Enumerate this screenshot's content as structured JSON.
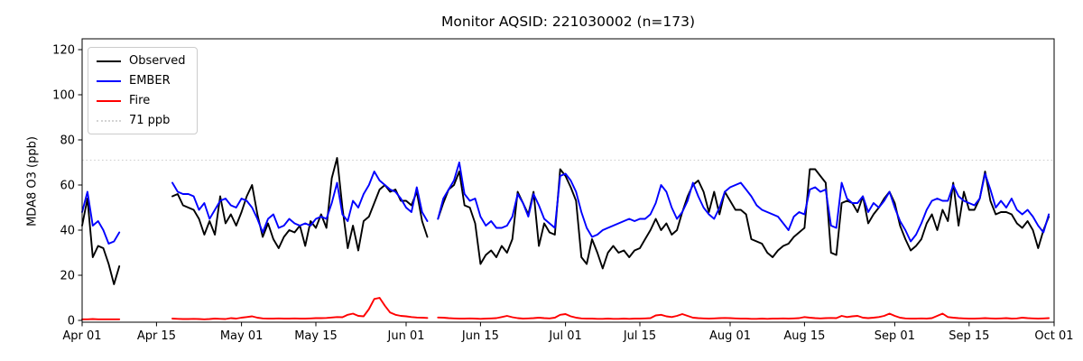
{
  "chart_data": {
    "type": "line",
    "title": "Monitor AQSID: 221030002 (n=173)",
    "ylabel": "MDA8 O3 (ppb)",
    "xlabel": "",
    "n_points": 173,
    "x_unit": "days since Apr 01",
    "xlim_days": [
      0,
      183
    ],
    "ylim": [
      -0.8,
      124.8
    ],
    "grid": false,
    "legend_position": "upper left",
    "x_ticks": [
      {
        "day": 0,
        "label": "Apr 01"
      },
      {
        "day": 14,
        "label": "Apr 15"
      },
      {
        "day": 30,
        "label": "May 01"
      },
      {
        "day": 44,
        "label": "May 15"
      },
      {
        "day": 61,
        "label": "Jun 01"
      },
      {
        "day": 75,
        "label": "Jun 15"
      },
      {
        "day": 91,
        "label": "Jul 01"
      },
      {
        "day": 105,
        "label": "Jul 15"
      },
      {
        "day": 122,
        "label": "Aug 01"
      },
      {
        "day": 136,
        "label": "Aug 15"
      },
      {
        "day": 153,
        "label": "Sep 01"
      },
      {
        "day": 167,
        "label": "Sep 15"
      },
      {
        "day": 183,
        "label": "Oct 01"
      }
    ],
    "y_ticks": [
      0,
      20,
      40,
      60,
      80,
      100,
      120
    ],
    "threshold": {
      "label": "71 ppb",
      "value": 71,
      "color": "#d3d3d3",
      "style": "dotted"
    },
    "series": [
      {
        "name": "Observed",
        "color": "#000000",
        "values": [
          42,
          54,
          28,
          33,
          32,
          25,
          16,
          24,
          null,
          null,
          null,
          null,
          null,
          null,
          null,
          null,
          null,
          55,
          56,
          51,
          50,
          49,
          45,
          38,
          44,
          38,
          55,
          43,
          47,
          42,
          48,
          55,
          60,
          47,
          37,
          43,
          36,
          32,
          37,
          40,
          39,
          42,
          33,
          44,
          41,
          47,
          41,
          63,
          72,
          50,
          32,
          42,
          31,
          44,
          46,
          52,
          58,
          60,
          57,
          58,
          53,
          53,
          51,
          57,
          44,
          37,
          null,
          45,
          52,
          58,
          60,
          66,
          51,
          50,
          43,
          25,
          29,
          31,
          28,
          33,
          30,
          36,
          57,
          52,
          47,
          57,
          33,
          43,
          39,
          38,
          67,
          64,
          59,
          53,
          28,
          25,
          36,
          30,
          23,
          30,
          33,
          30,
          31,
          28,
          31,
          32,
          36,
          40,
          45,
          40,
          43,
          38,
          40,
          48,
          55,
          60,
          62,
          57,
          48,
          57,
          47,
          57,
          53,
          49,
          49,
          47,
          36,
          35,
          34,
          30,
          28,
          31,
          33,
          34,
          37,
          39,
          41,
          67,
          67,
          64,
          61,
          30,
          29,
          52,
          53,
          52,
          48,
          55,
          43,
          47,
          50,
          54,
          57,
          52,
          42,
          36,
          31,
          33,
          36,
          43,
          47,
          40,
          49,
          44,
          61,
          42,
          57,
          49,
          49,
          54,
          66,
          53,
          47,
          48,
          48,
          47,
          43,
          41,
          44,
          40,
          32,
          40,
          46
        ]
      },
      {
        "name": "EMBER",
        "color": "#0000ff",
        "values": [
          48,
          57,
          42,
          44,
          40,
          34,
          35,
          39,
          null,
          null,
          null,
          null,
          null,
          null,
          null,
          null,
          null,
          61,
          57,
          56,
          56,
          55,
          49,
          52,
          45,
          49,
          53,
          54,
          51,
          50,
          54,
          53,
          50,
          45,
          39,
          45,
          47,
          41,
          42,
          45,
          43,
          42,
          43,
          42,
          45,
          46,
          45,
          52,
          61,
          47,
          44,
          53,
          50,
          56,
          60,
          66,
          62,
          60,
          58,
          57,
          54,
          50,
          48,
          59,
          48,
          44,
          null,
          45,
          54,
          58,
          62,
          70,
          56,
          53,
          54,
          46,
          42,
          44,
          41,
          41,
          42,
          46,
          56,
          52,
          46,
          56,
          51,
          45,
          43,
          41,
          64,
          65,
          62,
          57,
          48,
          41,
          37,
          38,
          40,
          41,
          42,
          43,
          44,
          45,
          44,
          45,
          45,
          47,
          52,
          60,
          57,
          50,
          45,
          48,
          53,
          61,
          55,
          50,
          47,
          45,
          50,
          57,
          59,
          60,
          61,
          58,
          55,
          51,
          49,
          48,
          47,
          46,
          43,
          40,
          46,
          48,
          47,
          58,
          59,
          57,
          58,
          42,
          41,
          61,
          54,
          52,
          52,
          55,
          48,
          52,
          50,
          53,
          57,
          50,
          44,
          40,
          35,
          38,
          43,
          49,
          53,
          54,
          53,
          53,
          60,
          55,
          53,
          52,
          51,
          54,
          65,
          58,
          50,
          53,
          50,
          54,
          49,
          47,
          49,
          46,
          42,
          39,
          47
        ]
      },
      {
        "name": "Fire",
        "color": "#ff0000",
        "values": [
          0.5,
          0.5,
          0.6,
          0.5,
          0.5,
          0.5,
          0.5,
          0.5,
          null,
          null,
          null,
          null,
          null,
          null,
          null,
          null,
          null,
          0.8,
          0.7,
          0.6,
          0.6,
          0.7,
          0.6,
          0.5,
          0.6,
          0.8,
          0.7,
          0.6,
          1.0,
          0.8,
          1.2,
          1.5,
          1.8,
          1.2,
          0.9,
          0.8,
          0.8,
          0.9,
          0.8,
          0.8,
          0.9,
          0.8,
          0.8,
          0.9,
          1.0,
          1.0,
          1.1,
          1.3,
          1.5,
          1.4,
          2.5,
          3.0,
          2.0,
          1.8,
          5.0,
          9.5,
          10.0,
          6.5,
          3.5,
          2.5,
          2.0,
          1.8,
          1.5,
          1.3,
          1.2,
          1.1,
          null,
          1.3,
          1.2,
          1.0,
          0.9,
          0.8,
          0.8,
          0.9,
          0.8,
          0.7,
          0.8,
          0.9,
          1.0,
          1.5,
          2.0,
          1.4,
          1.0,
          0.8,
          0.9,
          1.0,
          1.2,
          1.0,
          0.9,
          1.2,
          2.5,
          2.8,
          1.8,
          1.2,
          0.9,
          0.8,
          0.8,
          0.7,
          0.7,
          0.8,
          0.7,
          0.7,
          0.8,
          0.7,
          0.8,
          0.8,
          0.9,
          1.0,
          2.2,
          2.5,
          1.8,
          1.5,
          2.0,
          2.8,
          2.0,
          1.2,
          1.0,
          0.9,
          0.8,
          0.9,
          1.0,
          1.1,
          1.0,
          0.9,
          0.8,
          0.8,
          0.7,
          0.7,
          0.8,
          0.7,
          0.8,
          0.8,
          0.9,
          0.8,
          0.9,
          1.0,
          1.5,
          1.2,
          1.0,
          0.9,
          1.0,
          1.1,
          1.0,
          2.0,
          1.5,
          1.8,
          2.0,
          1.2,
          1.0,
          1.2,
          1.5,
          2.0,
          3.0,
          2.0,
          1.2,
          0.9,
          0.8,
          0.8,
          0.9,
          0.8,
          1.0,
          2.0,
          3.0,
          1.5,
          1.2,
          1.0,
          0.9,
          0.8,
          0.8,
          0.9,
          1.0,
          0.9,
          0.8,
          0.9,
          1.0,
          0.8,
          0.9,
          1.2,
          1.0,
          0.9,
          0.8,
          0.9,
          1.0
        ]
      }
    ]
  }
}
